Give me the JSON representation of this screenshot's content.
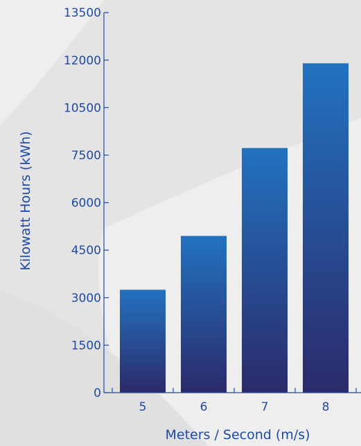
{
  "chart_data": {
    "type": "bar",
    "title": "",
    "xlabel": "Meters / Second (m/s)",
    "ylabel": "Kilowatt Hours (kWh)",
    "categories": [
      "5",
      "6",
      "7",
      "8"
    ],
    "values": [
      3250,
      4950,
      7950,
      11900
    ],
    "y_tick_labels": [
      "0",
      "1500",
      "3000",
      "4500",
      "6000",
      "7500",
      "10500",
      "12000",
      "13500"
    ],
    "grid": false,
    "legend": "none",
    "colors": {
      "bar_top": "#2272c0",
      "bar_bottom": "#2b2a6a",
      "axis": "#1f4aa3",
      "background": "#eeeeee"
    }
  }
}
